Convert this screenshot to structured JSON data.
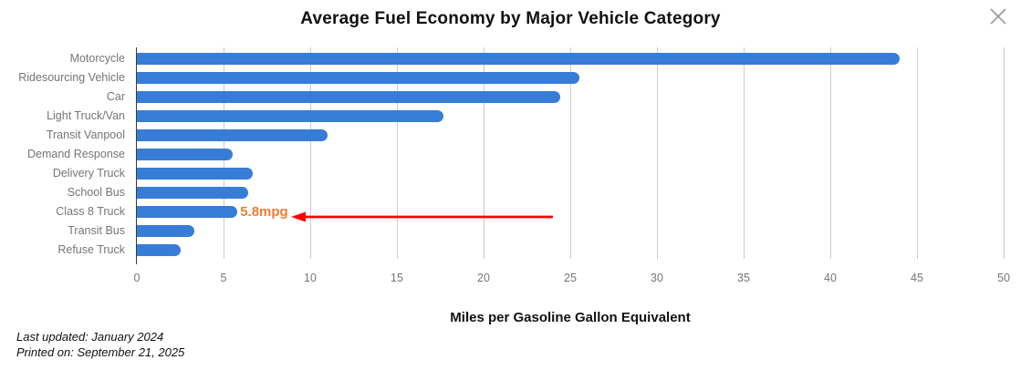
{
  "header": {
    "close_icon": "x-cross"
  },
  "chart_data": {
    "type": "bar",
    "orientation": "horizontal",
    "title": "Average Fuel Economy by Major Vehicle Category",
    "categories": [
      "Motorcycle",
      "Ridesourcing Vehicle",
      "Car",
      "Light Truck/Van",
      "Transit Vanpool",
      "Demand Response",
      "Delivery Truck",
      "School Bus",
      "Class 8 Truck",
      "Transit Bus",
      "Refuse Truck"
    ],
    "values": [
      44.0,
      25.5,
      24.4,
      17.7,
      11.0,
      5.5,
      6.7,
      6.4,
      5.8,
      3.3,
      2.5
    ],
    "xlabel": "Miles per Gasoline Gallon Equivalent",
    "xlim": [
      0,
      50
    ],
    "xticks": [
      0,
      5,
      10,
      15,
      20,
      25,
      30,
      35,
      40,
      45,
      50
    ],
    "grid": true,
    "legend": false,
    "bar_color": "#377dd8",
    "grid_color": "#cccccc",
    "axis_color": "#3c3c3c",
    "tick_label_color": "#757575",
    "annotation": {
      "text": "5.8mpg",
      "target_category": "Class 8 Truck",
      "text_color": "#ED7D31",
      "arrow_color": "#FF0000"
    }
  },
  "footer": {
    "line1": "Last updated: January 2024",
    "line2": "Printed on: September 21, 2025"
  }
}
